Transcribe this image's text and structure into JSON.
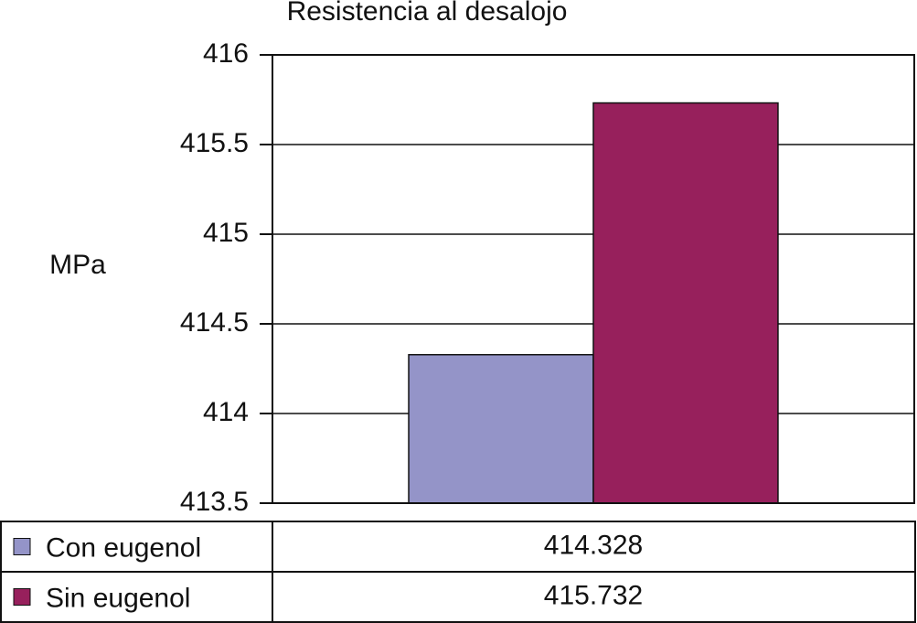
{
  "chart_data": {
    "type": "bar",
    "title": "Resistencia al desalojo",
    "y_label": "MPa",
    "categories": [
      null
    ],
    "series": [
      {
        "name": "Con eugenol",
        "color": "#9494c8",
        "values": [
          414.328
        ]
      },
      {
        "name": "Sin eugenol",
        "color": "#97205c",
        "values": [
          415.732
        ]
      }
    ],
    "ylim": [
      413.5,
      416
    ],
    "yticks": [
      413.5,
      414,
      414.5,
      415,
      415.5,
      416
    ],
    "grid": true
  }
}
